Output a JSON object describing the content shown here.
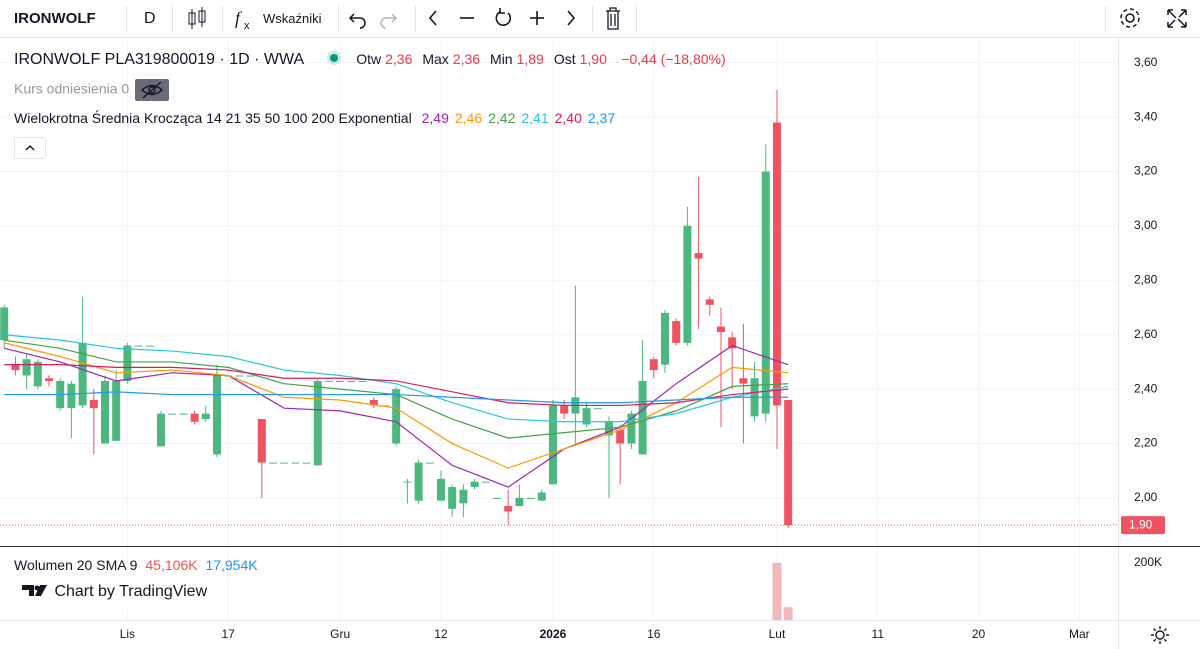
{
  "toolbar": {
    "symbol": "IRONWOLF",
    "interval": "D",
    "indicators": "Wskaźniki"
  },
  "chart_data": {
    "type": "candlestick",
    "title": "IRONWOLF PLA319800019 · 1D · WWA",
    "ohlc_legend": [
      {
        "label": "Otw",
        "value": "2,36"
      },
      {
        "label": "Max",
        "value": "2,36"
      },
      {
        "label": "Min",
        "value": "1,89"
      },
      {
        "label": "Ost",
        "value": "1,90"
      }
    ],
    "change": "−0,44 (−18,80%)",
    "reference_label": "Kurs odniesienia 0",
    "ma_title": "Wielokrotna Średnia Krocząca 14 21 35 50 100 200 Exponential",
    "up_color": "#4cb87f",
    "down_color": "#ef5362",
    "open": [
      2.58,
      2.49,
      2.45,
      2.41,
      2.44,
      2.33,
      2.33,
      2.34,
      2.36,
      2.2,
      2.21,
      2.43,
      2.56,
      2.56,
      2.19,
      2.31,
      2.31,
      2.31,
      2.29,
      2.16,
      2.45,
      2.45,
      2.45,
      2.29,
      2.13,
      2.13,
      2.13,
      2.13,
      2.12,
      2.43,
      2.43,
      2.43,
      2.43,
      2.36,
      2.34,
      2.2,
      2.06,
      1.99,
      2.13,
      1.99,
      1.96,
      1.98,
      2.04,
      2.06,
      2.0,
      1.97,
      1.97,
      2.0,
      1.99,
      2.05,
      2.34,
      2.31,
      2.27,
      2.33,
      2.23,
      2.25,
      2.2,
      2.16,
      2.51,
      2.49,
      2.65,
      2.57,
      2.9,
      2.73,
      2.63,
      2.59,
      2.44,
      2.3,
      2.31,
      3.38,
      2.36
    ],
    "high": [
      2.71,
      2.52,
      2.53,
      2.51,
      2.45,
      2.44,
      2.43,
      2.74,
      2.4,
      2.45,
      2.47,
      2.57,
      2.56,
      2.56,
      2.32,
      2.31,
      2.31,
      2.32,
      2.34,
      2.49,
      2.45,
      2.45,
      2.45,
      2.29,
      2.13,
      2.13,
      2.13,
      2.13,
      2.44,
      2.43,
      2.43,
      2.43,
      2.43,
      2.37,
      2.34,
      2.41,
      2.07,
      2.14,
      2.13,
      2.1,
      2.05,
      2.05,
      2.07,
      2.06,
      2.0,
      2.03,
      2.05,
      2.0,
      2.03,
      2.36,
      2.36,
      2.78,
      2.35,
      2.33,
      2.3,
      2.27,
      2.32,
      2.58,
      2.52,
      2.69,
      2.66,
      3.07,
      3.18,
      2.74,
      2.7,
      2.61,
      2.64,
      2.5,
      3.3,
      3.5,
      2.36
    ],
    "low": [
      2.55,
      2.45,
      2.4,
      2.4,
      2.41,
      2.32,
      2.22,
      2.33,
      2.16,
      2.2,
      2.21,
      2.42,
      2.56,
      2.56,
      2.19,
      2.31,
      2.31,
      2.27,
      2.28,
      2.15,
      2.45,
      2.45,
      2.45,
      2.0,
      2.13,
      2.13,
      2.13,
      2.13,
      2.12,
      2.43,
      2.43,
      2.43,
      2.43,
      2.33,
      2.34,
      2.19,
      1.98,
      1.98,
      2.13,
      1.99,
      1.93,
      1.93,
      2.03,
      2.06,
      2.0,
      1.9,
      1.97,
      2.0,
      1.99,
      2.05,
      2.29,
      2.2,
      2.26,
      2.33,
      2.0,
      2.05,
      2.18,
      2.16,
      2.44,
      2.46,
      2.56,
      2.56,
      2.62,
      2.67,
      2.26,
      2.4,
      2.2,
      2.28,
      2.28,
      2.18,
      1.89
    ],
    "close": [
      2.7,
      2.47,
      2.51,
      2.5,
      2.43,
      2.43,
      2.42,
      2.57,
      2.33,
      2.43,
      2.43,
      2.56,
      2.56,
      2.56,
      2.31,
      2.31,
      2.31,
      2.28,
      2.31,
      2.45,
      2.45,
      2.45,
      2.45,
      2.13,
      2.13,
      2.13,
      2.13,
      2.13,
      2.43,
      2.43,
      2.43,
      2.43,
      2.43,
      2.34,
      2.34,
      2.4,
      2.06,
      2.13,
      2.13,
      2.07,
      2.04,
      2.03,
      2.06,
      2.06,
      2.0,
      1.95,
      2.0,
      2.0,
      2.02,
      2.34,
      2.31,
      2.37,
      2.33,
      2.33,
      2.28,
      2.2,
      2.31,
      2.43,
      2.47,
      2.68,
      2.57,
      3.0,
      2.88,
      2.71,
      2.61,
      2.55,
      2.42,
      2.44,
      3.2,
      2.34,
      1.9
    ],
    "series": [
      {
        "color": "#9c27b0",
        "value_label": "2,49",
        "x": [
          0,
          5,
          10,
          15,
          20,
          25,
          30,
          35,
          40,
          45,
          50,
          55,
          60,
          65,
          70
        ],
        "values": [
          2.55,
          2.5,
          2.43,
          2.46,
          2.45,
          2.33,
          2.32,
          2.28,
          2.12,
          2.04,
          2.18,
          2.26,
          2.42,
          2.56,
          2.49
        ]
      },
      {
        "color": "#ff9800",
        "value_label": "2,46",
        "x": [
          0,
          5,
          10,
          15,
          20,
          25,
          30,
          35,
          40,
          45,
          50,
          55,
          60,
          65,
          70
        ],
        "values": [
          2.57,
          2.52,
          2.46,
          2.47,
          2.45,
          2.37,
          2.36,
          2.33,
          2.2,
          2.11,
          2.18,
          2.25,
          2.35,
          2.48,
          2.46
        ]
      },
      {
        "color": "#43a047",
        "value_label": "2,42",
        "x": [
          0,
          5,
          10,
          15,
          20,
          25,
          30,
          35,
          40,
          45,
          50,
          55,
          60,
          65,
          70
        ],
        "values": [
          2.58,
          2.55,
          2.5,
          2.5,
          2.48,
          2.42,
          2.4,
          2.38,
          2.29,
          2.22,
          2.24,
          2.26,
          2.32,
          2.41,
          2.42
        ]
      },
      {
        "color": "#26c6da",
        "value_label": "2,41",
        "x": [
          0,
          5,
          10,
          15,
          20,
          25,
          30,
          35,
          40,
          45,
          50,
          55,
          60,
          65,
          70
        ],
        "values": [
          2.6,
          2.58,
          2.55,
          2.54,
          2.52,
          2.47,
          2.45,
          2.42,
          2.35,
          2.29,
          2.28,
          2.28,
          2.31,
          2.37,
          2.41
        ]
      },
      {
        "color": "#d81b60",
        "value_label": "2,40",
        "x": [
          0,
          5,
          10,
          15,
          20,
          25,
          30,
          35,
          40,
          45,
          50,
          55,
          60,
          65,
          70
        ],
        "values": [
          2.49,
          2.49,
          2.48,
          2.48,
          2.47,
          2.44,
          2.44,
          2.43,
          2.39,
          2.35,
          2.34,
          2.34,
          2.35,
          2.38,
          2.4
        ]
      },
      {
        "color": "#2196f3",
        "value_label": "2,37",
        "x": [
          0,
          5,
          10,
          15,
          20,
          25,
          30,
          35,
          40,
          45,
          50,
          55,
          60,
          65,
          70
        ],
        "values": [
          2.38,
          2.38,
          2.39,
          2.38,
          2.38,
          2.38,
          2.38,
          2.38,
          2.37,
          2.36,
          2.35,
          2.35,
          2.36,
          2.37,
          2.37
        ]
      }
    ],
    "xlim": [
      -0.375,
      99.45
    ],
    "xticks": [
      {
        "value": 11,
        "label": "Lis"
      },
      {
        "value": 20,
        "label": "17"
      },
      {
        "value": 30,
        "label": "Gru"
      },
      {
        "value": 39,
        "label": "12"
      },
      {
        "value": 49,
        "label": "2026",
        "bold": true
      },
      {
        "value": 58,
        "label": "16"
      },
      {
        "value": 69,
        "label": "Lut"
      },
      {
        "value": 78,
        "label": "11"
      },
      {
        "value": 87,
        "label": "20"
      },
      {
        "value": 96,
        "label": "Mar"
      }
    ],
    "ylim": [
      1.827,
      3.665
    ],
    "yticks": [
      {
        "value": 3.6,
        "label": "3,60"
      },
      {
        "value": 3.4,
        "label": "3,40"
      },
      {
        "value": 3.2,
        "label": "3,20"
      },
      {
        "value": 3.0,
        "label": "3,00"
      },
      {
        "value": 2.8,
        "label": "2,80"
      },
      {
        "value": 2.6,
        "label": "2,60"
      },
      {
        "value": 2.4,
        "label": "2,40"
      },
      {
        "value": 2.2,
        "label": "2,20"
      },
      {
        "value": 2.0,
        "label": "2,00"
      }
    ],
    "grid": true,
    "last_price": {
      "value": 1.9,
      "label": "1,90"
    },
    "volume": {
      "title": "Wolumen 20 SMA 9",
      "value_label": "45,106K",
      "sma_label": "17,954K",
      "color": "#f5b7be",
      "x": [
        69,
        70
      ],
      "values": [
        200000,
        45106
      ],
      "ylim": [
        0,
        252600
      ],
      "yticks": [
        {
          "value": 200000,
          "label": "200K"
        }
      ]
    },
    "watermark": "Chart by TradingView"
  }
}
